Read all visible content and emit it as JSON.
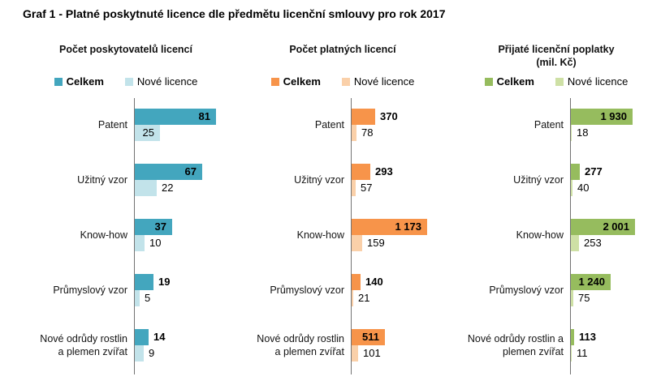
{
  "page_title": "Graf 1 - Platné poskytnuté licence dle předmětu licenční smlouvy pro rok 2017",
  "axis_color": "#737373",
  "chart_data": [
    {
      "type": "bar",
      "orientation": "horizontal",
      "title": "Počet poskytovatelů licencí",
      "subtitle": "",
      "legend_position": "top",
      "value_labels": "on",
      "categories": [
        "Patent",
        "Užitný vzor",
        "Know-how",
        "Průmyslový vzor",
        "Nové odrůdy rostlin\na plemen zvířat"
      ],
      "series": [
        {
          "name": "Celkem",
          "color": "#43A6BE",
          "values": [
            81,
            67,
            37,
            19,
            14
          ]
        },
        {
          "name": "Nové licence",
          "color": "#C2E3EA",
          "values": [
            25,
            22,
            10,
            5,
            9
          ]
        }
      ],
      "xlim": [
        0,
        93
      ]
    },
    {
      "type": "bar",
      "orientation": "horizontal",
      "title": "Počet platných licencí",
      "subtitle": "",
      "legend_position": "top",
      "value_labels": "on",
      "categories": [
        "Patent",
        "Užitný vzor",
        "Know-how",
        "Průmyslový vzor",
        "Nové odrůdy rostlin\na plemen zvířat"
      ],
      "series": [
        {
          "name": "Celkem",
          "color": "#F7944A",
          "values": [
            370,
            293,
            1173,
            140,
            511
          ]
        },
        {
          "name": "Nové licence",
          "color": "#FAD0A9",
          "values": [
            78,
            57,
            159,
            21,
            101
          ]
        }
      ],
      "xlim": [
        0,
        1450
      ]
    },
    {
      "type": "bar",
      "orientation": "horizontal",
      "title": "Přijaté licenční poplatky",
      "subtitle": "(mil. Kč)",
      "legend_position": "top",
      "value_labels": "on",
      "categories": [
        "Patent",
        "Užitný vzor",
        "Know-how",
        "Průmyslový vzor",
        "Nové odrůdy rostlin a\nplemen zvířat"
      ],
      "series": [
        {
          "name": "Celkem",
          "color": "#96BC5E",
          "values": [
            1930,
            277,
            2001,
            1240,
            113
          ]
        },
        {
          "name": "Nové licence",
          "color": "#CEE0A5",
          "values": [
            18,
            40,
            253,
            75,
            11
          ]
        }
      ],
      "xlim": [
        0,
        2740
      ]
    }
  ]
}
